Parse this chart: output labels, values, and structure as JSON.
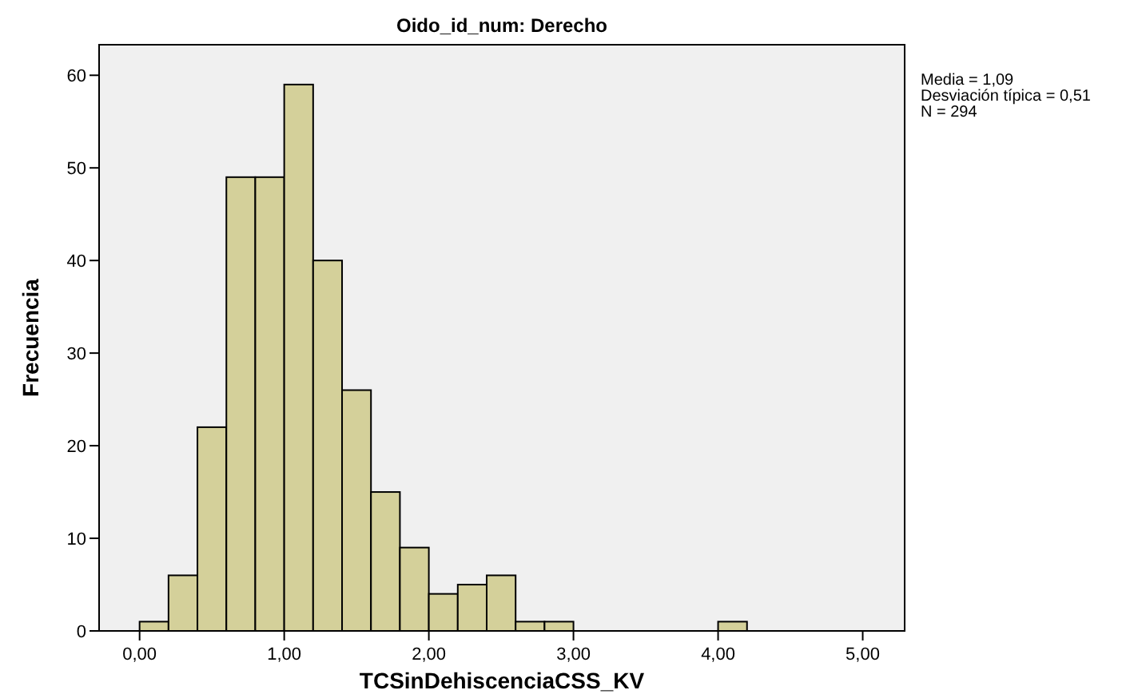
{
  "chart_data": {
    "type": "histogram",
    "title": "Oido_id_num: Derecho",
    "xlabel": "TCSinDehiscenciaCSS_KV",
    "ylabel": "Frecuencia",
    "bins": [
      0,
      0.2,
      0.4,
      0.6,
      0.8,
      1.0,
      1.2,
      1.4,
      1.6,
      1.8,
      2.0,
      2.2,
      2.4,
      2.6,
      2.8,
      3.0,
      3.2,
      3.4,
      3.6,
      3.8,
      4.0,
      4.2
    ],
    "values": [
      1,
      6,
      22,
      49,
      49,
      59,
      40,
      26,
      15,
      9,
      4,
      5,
      6,
      1,
      1,
      0,
      0,
      0,
      0,
      0,
      1
    ],
    "color": "#d4d09a",
    "xlim": [
      -0.28,
      5.29
    ],
    "ylim": [
      0,
      63.3
    ],
    "xticks": [
      {
        "value": 0,
        "label": "0,00"
      },
      {
        "value": 1,
        "label": "1,00"
      },
      {
        "value": 2,
        "label": "2,00"
      },
      {
        "value": 3,
        "label": "3,00"
      },
      {
        "value": 4,
        "label": "4,00"
      },
      {
        "value": 5,
        "label": "5,00"
      }
    ],
    "yticks": [
      0,
      10,
      20,
      30,
      40,
      50,
      60
    ],
    "annotations": [
      "Media = 1,09",
      "Desviación típica = 0,51",
      "N = 294"
    ]
  }
}
